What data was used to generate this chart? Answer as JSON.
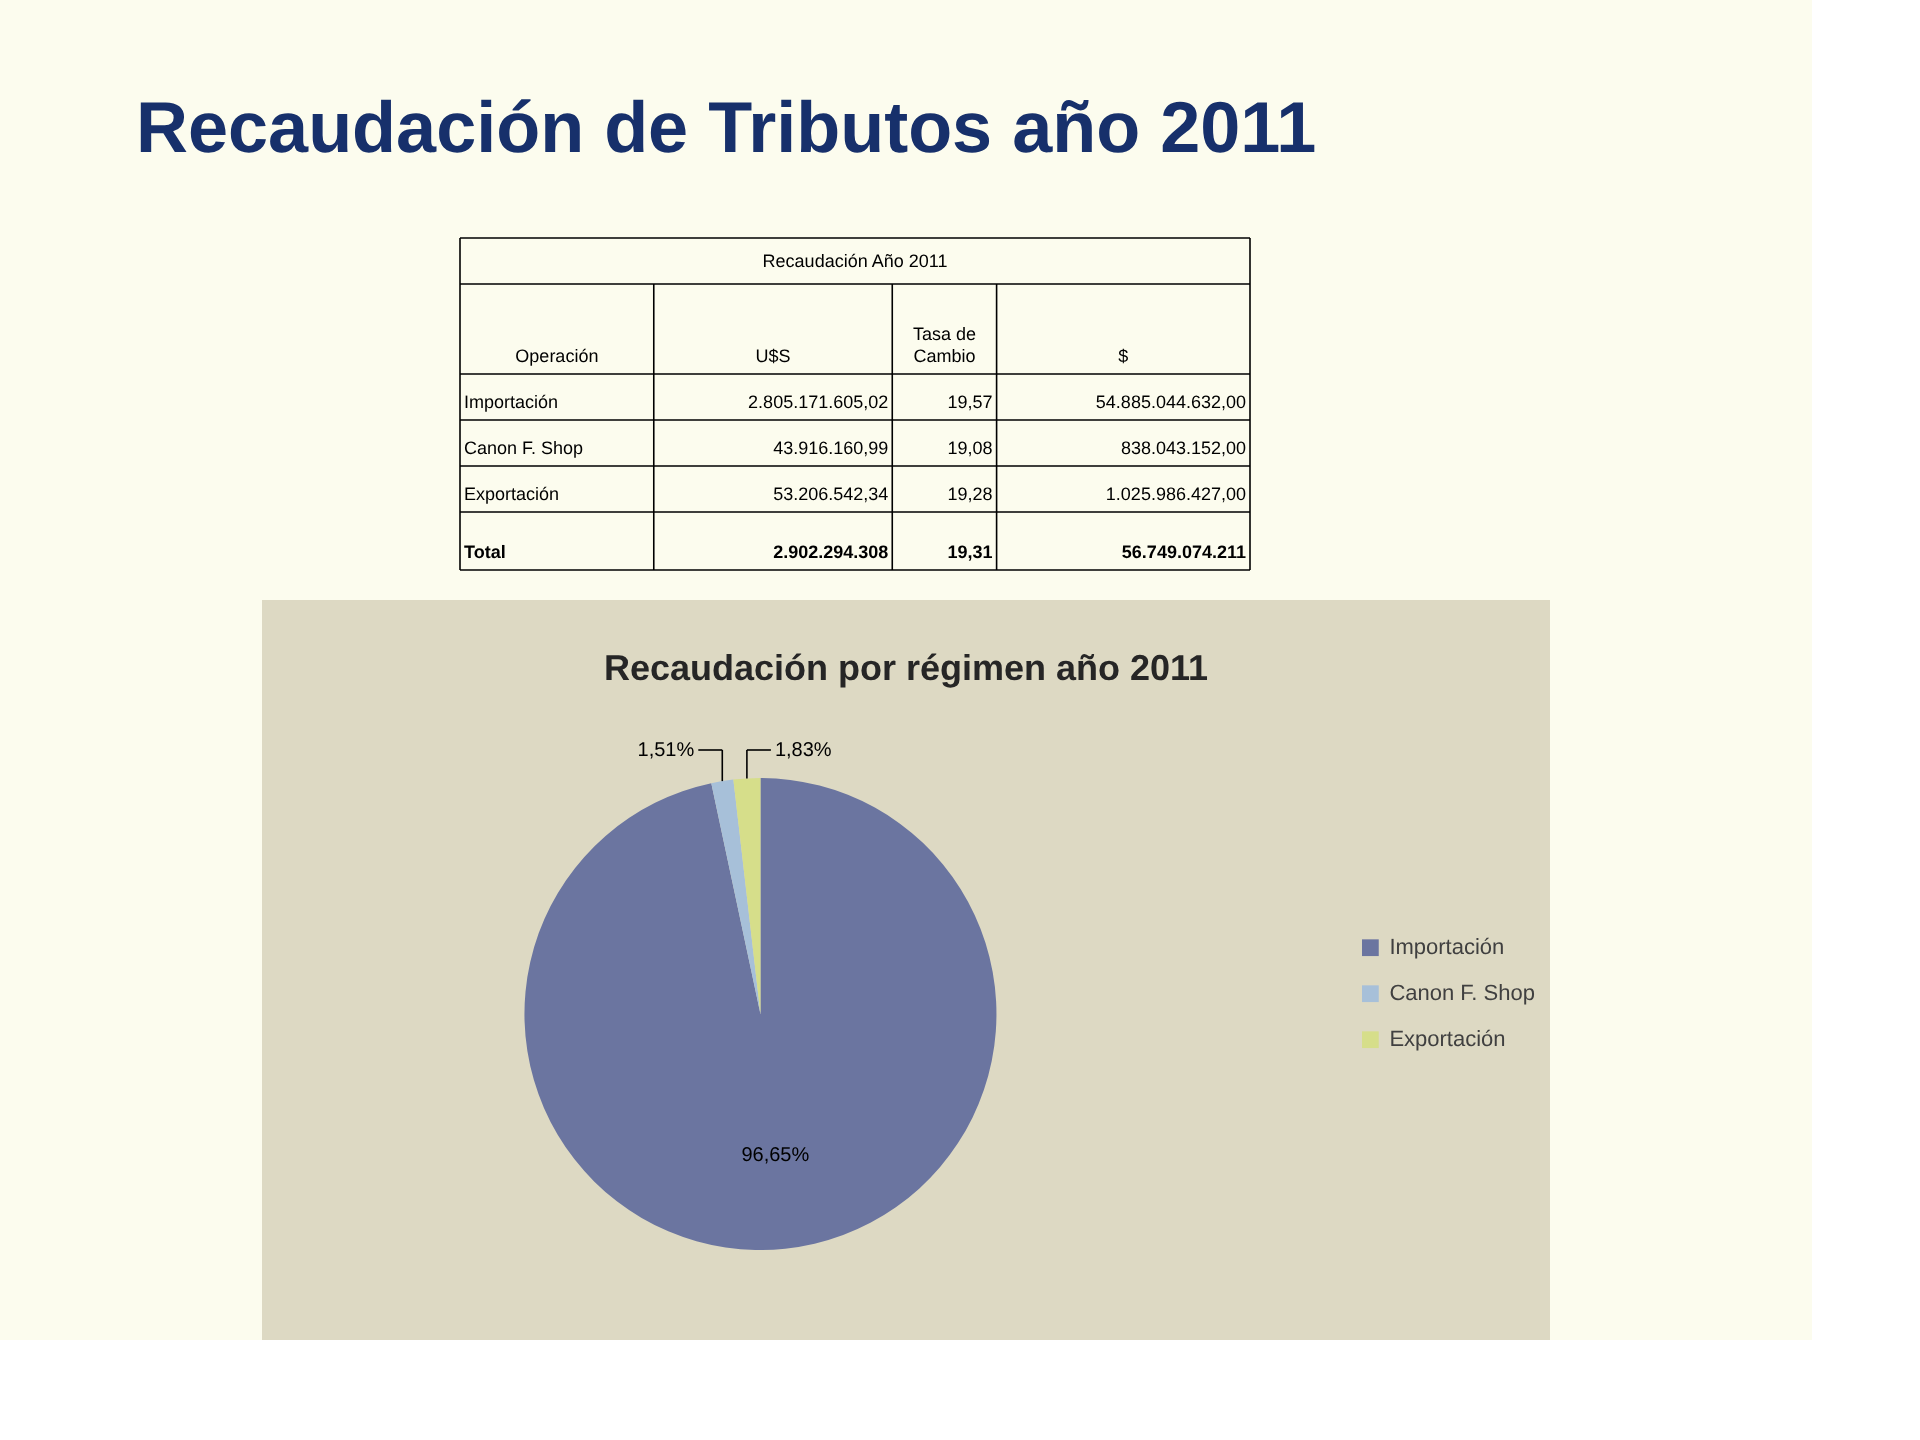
{
  "chart_data": [
    {
      "type": "other",
      "title": "Recaudación de Tributos año 2011",
      "subtitle": "Recaudación Año 2011",
      "categories": [
        "Operación",
        "U$S",
        "Tasa de Cambio",
        "$"
      ],
      "annotations": [
        "Importación",
        "2.805.171.605,02",
        "19,57",
        "54.885.044.632,00",
        "Canon F. Shop",
        "43.916.160,99",
        "19,08",
        "838.043.152,00",
        "Exportación",
        "53.206.542,34",
        "19,28",
        "1.025.986.427,00",
        "Total",
        "2.902.294.308",
        "19,31",
        "56.749.074.211"
      ]
    },
    {
      "type": "pie",
      "title": "Recaudación por régimen año 2011",
      "categories": [
        "Importación",
        "Canon F. Shop",
        "Exportación"
      ],
      "values": [
        96.65,
        1.51,
        1.83
      ],
      "colors": [
        "#6b75a0",
        "#a7c0d9",
        "#d6de8a"
      ],
      "value_labels": [
        "96,65%",
        "1,51%",
        "1,83%"
      ],
      "legend": "right"
    }
  ]
}
